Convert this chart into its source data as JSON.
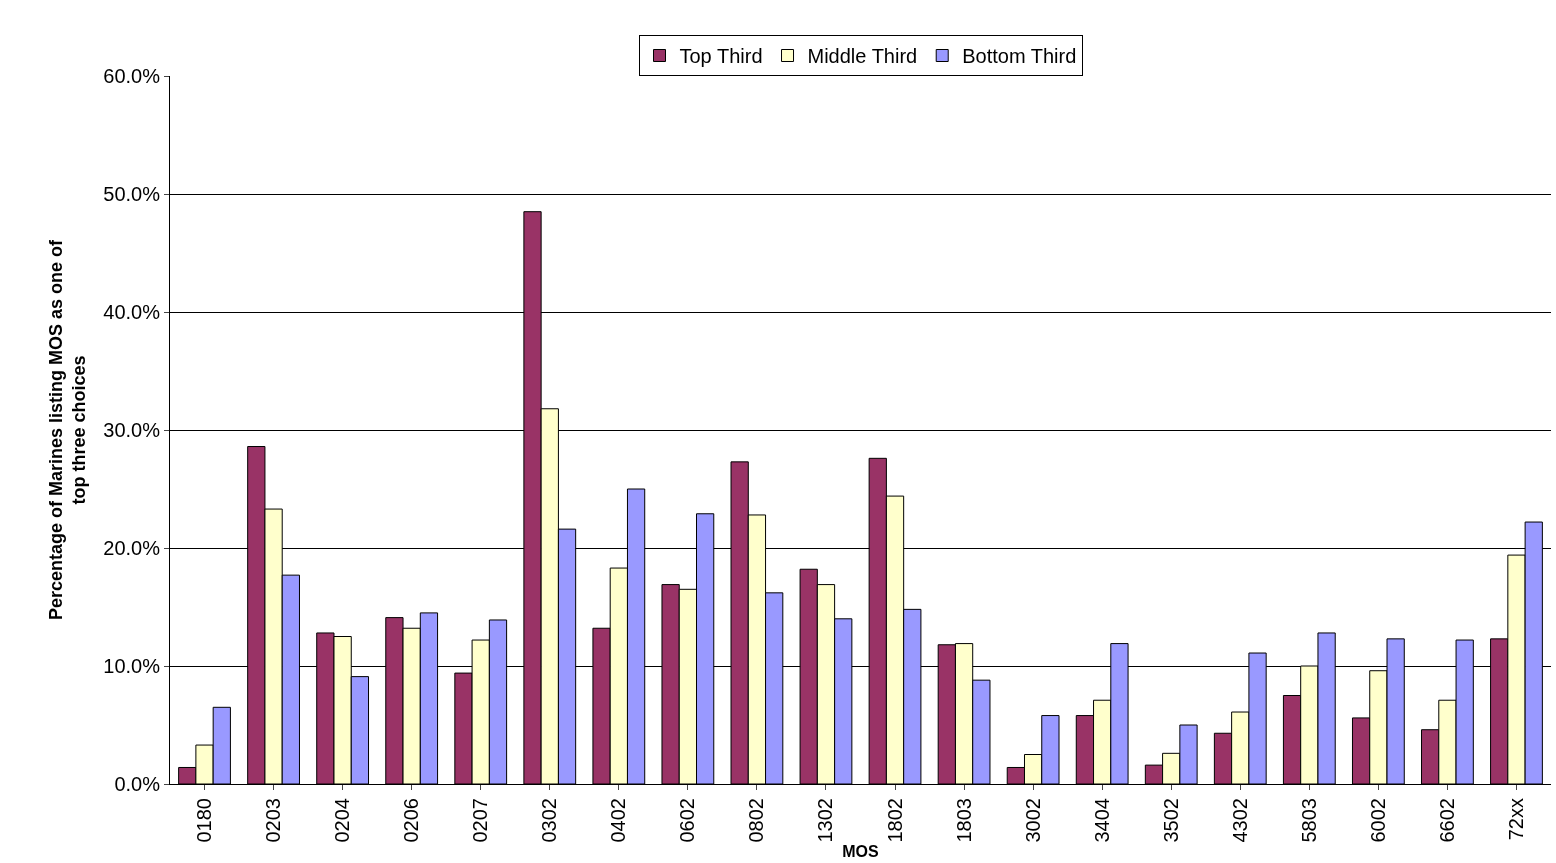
{
  "chart_data": {
    "type": "bar",
    "xlabel": "MOS",
    "ylabel": "Percentage of Marines listing MOS as one of top three choices",
    "categories": [
      "0180",
      "0203",
      "0204",
      "0206",
      "0207",
      "0302",
      "0402",
      "0602",
      "0802",
      "1302",
      "1802",
      "1803",
      "3002",
      "3404",
      "3502",
      "4302",
      "5803",
      "6002",
      "6602",
      "72xx"
    ],
    "series": [
      {
        "name": "Top Third",
        "color": "#993366",
        "values": [
          1.4,
          28.6,
          12.8,
          14.1,
          9.4,
          48.5,
          13.2,
          16.9,
          27.3,
          18.2,
          27.6,
          11.8,
          1.4,
          5.8,
          1.6,
          4.3,
          7.5,
          5.6,
          4.6,
          12.3
        ]
      },
      {
        "name": "Middle Third",
        "color": "#ffffcc",
        "values": [
          3.3,
          23.3,
          12.5,
          13.2,
          12.2,
          31.8,
          18.3,
          16.5,
          22.8,
          16.9,
          24.4,
          11.9,
          2.5,
          7.1,
          2.6,
          6.1,
          10.0,
          9.6,
          7.1,
          19.4
        ]
      },
      {
        "name": "Bottom Third",
        "color": "#9999ff",
        "values": [
          6.5,
          17.7,
          9.1,
          14.5,
          13.9,
          21.6,
          25.0,
          22.9,
          16.2,
          14.0,
          14.8,
          8.8,
          5.8,
          11.9,
          5.0,
          11.1,
          12.8,
          12.3,
          12.2,
          22.2
        ]
      }
    ],
    "ylim": [
      0,
      60
    ],
    "yticks": [
      {
        "value": 0,
        "label": "0.0%"
      },
      {
        "value": 10,
        "label": "10.0%"
      },
      {
        "value": 20,
        "label": "20.0%"
      },
      {
        "value": 30,
        "label": "30.0%"
      },
      {
        "value": 40,
        "label": "40.0%"
      },
      {
        "value": 50,
        "label": "50.0%"
      },
      {
        "value": 60,
        "label": "60.0%"
      }
    ],
    "grid": "y",
    "legend": "top"
  }
}
